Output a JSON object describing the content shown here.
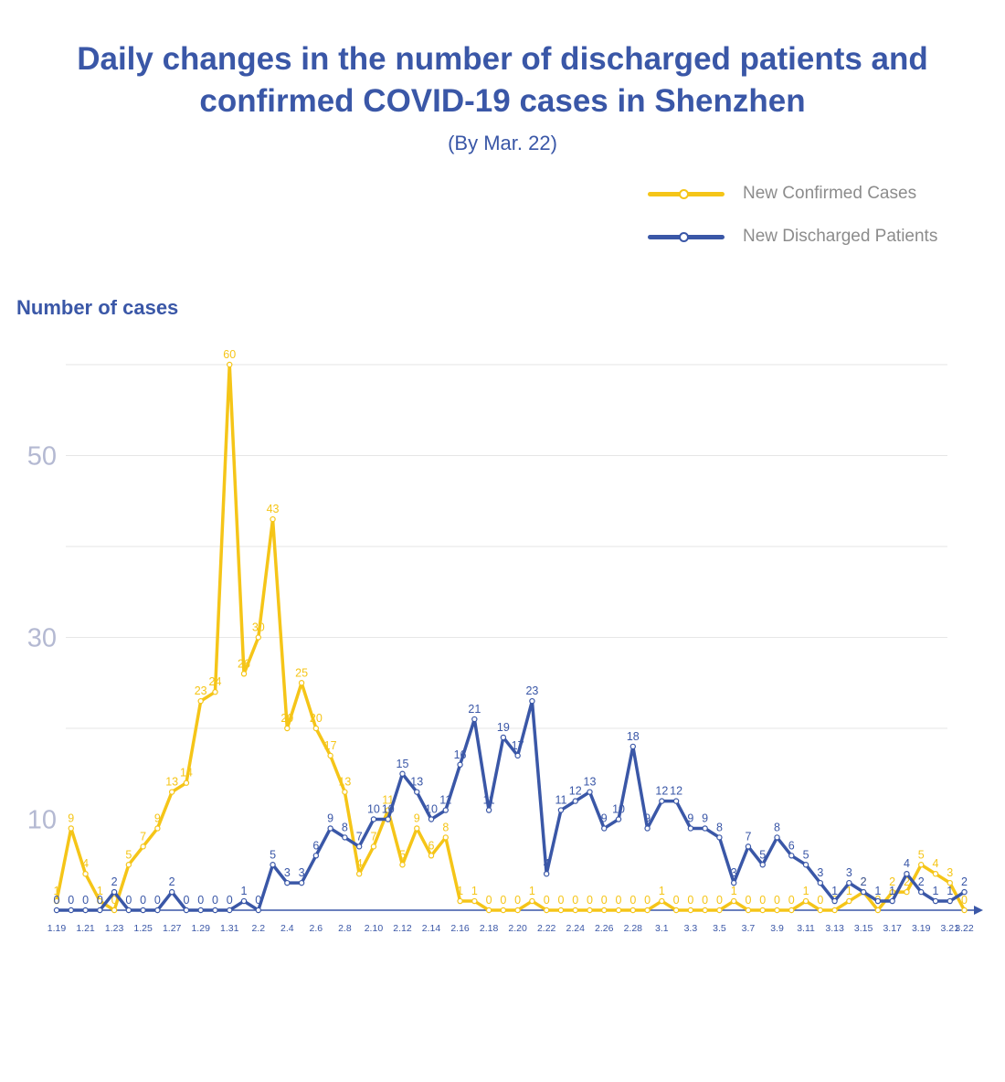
{
  "colors": {
    "confirmed": "#f5c518",
    "discharged": "#3a57a7",
    "grid": "#e6e6e6",
    "tick": "#b4b9d2",
    "xtick": "#3a57a7"
  },
  "header": {
    "title_line1": "Daily changes in the number of discharged patients and",
    "title_line2": "confirmed COVID-19 cases in Shenzhen",
    "subtitle": "(By Mar. 22)"
  },
  "legend": {
    "confirmed_label": "New Confirmed Cases",
    "discharged_label": "New Discharged Patients"
  },
  "chart_data": {
    "type": "line",
    "title": "Daily changes in the number of discharged patients and confirmed COVID-19 cases in Shenzhen",
    "subtitle": "(By Mar. 22)",
    "ylabel": "Number of cases",
    "xlabel": "",
    "ylim": [
      0,
      60
    ],
    "yticks": [
      10,
      30,
      50
    ],
    "grid": true,
    "legend_position": "top-right",
    "x": [
      "1.19",
      "1.20",
      "1.21",
      "1.22",
      "1.23",
      "1.24",
      "1.25",
      "1.26",
      "1.27",
      "1.28",
      "1.29",
      "1.30",
      "1.31",
      "2.1",
      "2.2",
      "2.3",
      "2.4",
      "2.5",
      "2.6",
      "2.7",
      "2.8",
      "2.9",
      "2.10",
      "2.11",
      "2.12",
      "2.13",
      "2.14",
      "2.15",
      "2.16",
      "2.17",
      "2.18",
      "2.19",
      "2.20",
      "2.21",
      "2.22",
      "2.23",
      "2.24",
      "2.25",
      "2.26",
      "2.27",
      "2.28",
      "2.29",
      "3.1",
      "3.2",
      "3.3",
      "3.4",
      "3.5",
      "3.6",
      "3.7",
      "3.8",
      "3.9",
      "3.10",
      "3.11",
      "3.12",
      "3.13",
      "3.14",
      "3.15",
      "3.16",
      "3.17",
      "3.18",
      "3.19",
      "3.20",
      "3.21",
      "3.22"
    ],
    "x_tick_labels": [
      "1.19",
      "1.21",
      "1.23",
      "1.25",
      "1.27",
      "1.29",
      "1.31",
      "2.2",
      "2.4",
      "2.6",
      "2.8",
      "2.10",
      "2.12",
      "2.14",
      "2.16",
      "2.18",
      "2.20",
      "2.22",
      "2.24",
      "2.26",
      "2.28",
      "3.1",
      "3.3",
      "3.5",
      "3.7",
      "3.9",
      "3.11",
      "3.13",
      "3.15",
      "3.17",
      "3.19",
      "3.21",
      "3.22"
    ],
    "series": [
      {
        "name": "New Confirmed Cases",
        "values": [
          1,
          9,
          4,
          1,
          0,
          5,
          7,
          9,
          13,
          14,
          23,
          24,
          60,
          26,
          30,
          43,
          20,
          25,
          20,
          17,
          13,
          4,
          7,
          11,
          5,
          9,
          6,
          8,
          1,
          1,
          0,
          0,
          0,
          1,
          0,
          0,
          0,
          0,
          0,
          0,
          0,
          0,
          1,
          0,
          0,
          0,
          0,
          1,
          0,
          0,
          0,
          0,
          1,
          0,
          0,
          1,
          2,
          0,
          2,
          2,
          5,
          4,
          3,
          0
        ]
      },
      {
        "name": "New Discharged Patients",
        "values": [
          0,
          0,
          0,
          0,
          2,
          0,
          0,
          0,
          2,
          0,
          0,
          0,
          0,
          1,
          0,
          5,
          3,
          3,
          6,
          9,
          8,
          7,
          10,
          10,
          15,
          13,
          10,
          11,
          16,
          21,
          11,
          19,
          17,
          23,
          4,
          11,
          12,
          13,
          9,
          10,
          18,
          9,
          12,
          12,
          9,
          9,
          8,
          3,
          7,
          5,
          8,
          6,
          5,
          3,
          1,
          3,
          2,
          1,
          1,
          4,
          2,
          1,
          1,
          2
        ]
      }
    ]
  }
}
